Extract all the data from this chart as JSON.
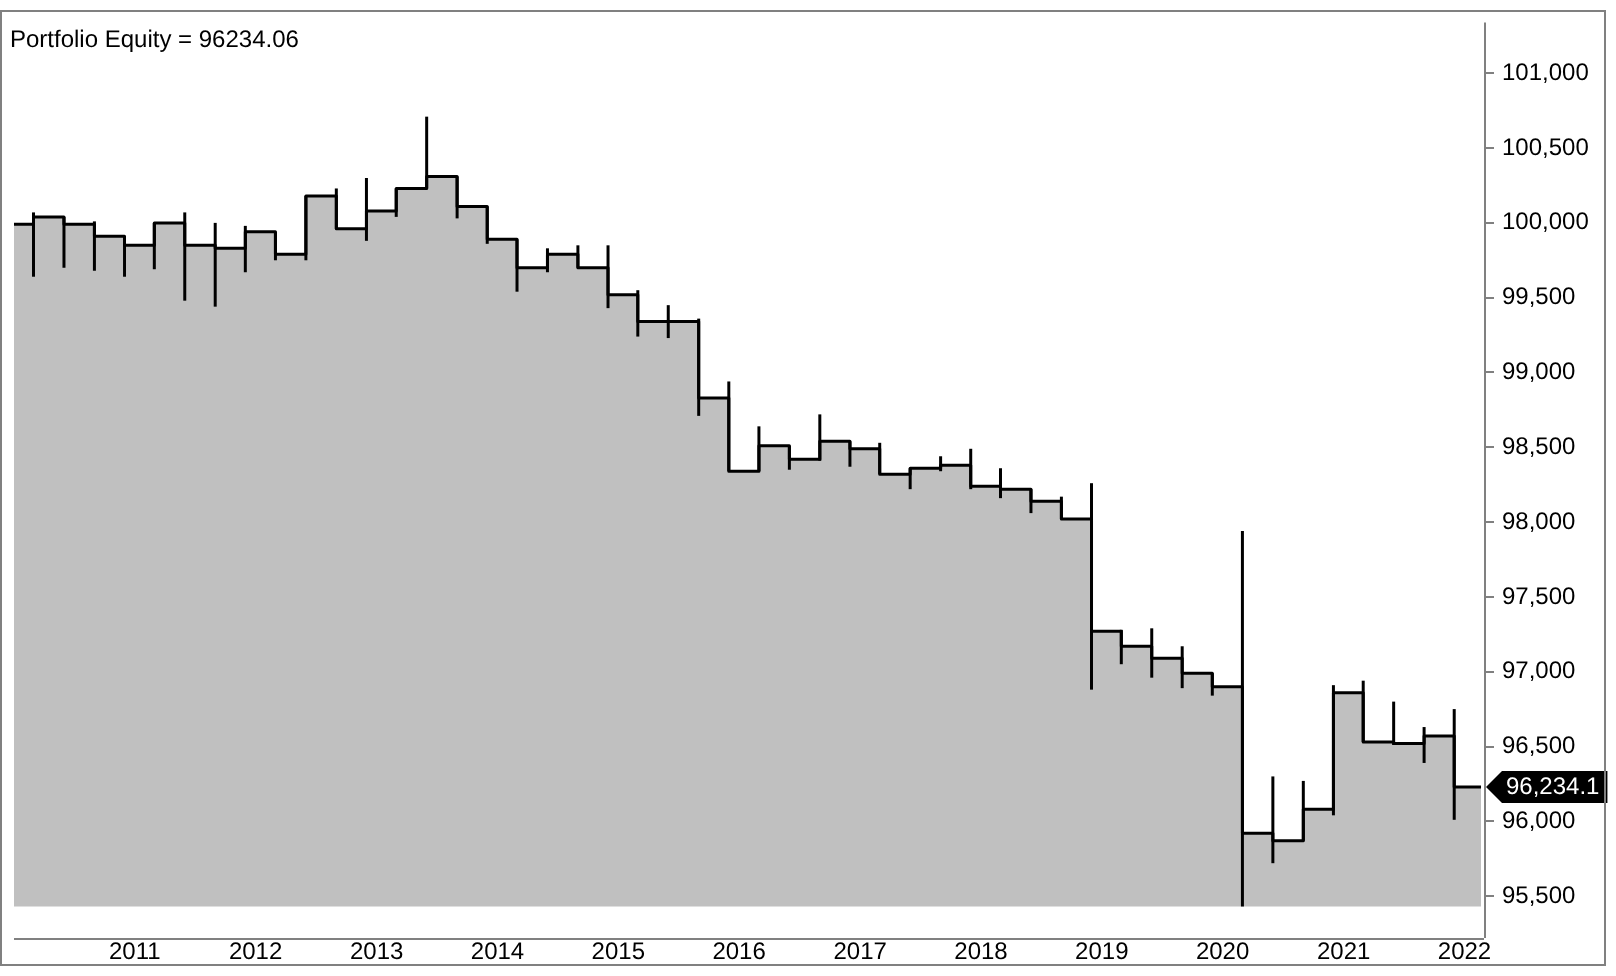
{
  "chart_data": {
    "type": "area",
    "title": "Portfolio Equity = 96234.06",
    "x": [
      "2010-01",
      "2010-03",
      "2010-06",
      "2010-09",
      "2010-12",
      "2011-03",
      "2011-06",
      "2011-09",
      "2011-12",
      "2012-03",
      "2012-06",
      "2012-09",
      "2012-12",
      "2013-03",
      "2013-06",
      "2013-09",
      "2013-12",
      "2014-03",
      "2014-06",
      "2014-09",
      "2014-12",
      "2015-03",
      "2015-06",
      "2015-09",
      "2015-12",
      "2016-03",
      "2016-06",
      "2016-09",
      "2016-12",
      "2017-03",
      "2017-06",
      "2017-09",
      "2017-12",
      "2018-03",
      "2018-06",
      "2018-09",
      "2018-12",
      "2019-03",
      "2019-06",
      "2019-09",
      "2019-12",
      "2020-03",
      "2020-06",
      "2020-09",
      "2020-12",
      "2021-03",
      "2021-06",
      "2021-09",
      "2021-12",
      "2022-02-20"
    ],
    "series": [
      {
        "color": "#c0c0c0",
        "values": [
          99990,
          100040,
          99990,
          99910,
          99850,
          100000,
          99850,
          99830,
          99940,
          99790,
          100180,
          99960,
          100080,
          100230,
          100310,
          100110,
          99890,
          99700,
          99790,
          99700,
          99520,
          99340,
          99340,
          98830,
          98340,
          98510,
          98420,
          98540,
          98490,
          98320,
          98360,
          98380,
          98240,
          98220,
          98140,
          98020,
          97270,
          97170,
          97090,
          96990,
          96900,
          95920,
          95870,
          96080,
          96860,
          96530,
          96520,
          96570,
          96230,
          96230
        ]
      },
      {
        "type": "step",
        "color": "#000000",
        "values": [
          99990,
          100040,
          99990,
          99910,
          99850,
          100000,
          99850,
          99830,
          99940,
          99790,
          100180,
          99960,
          100080,
          100230,
          100310,
          100110,
          99890,
          99700,
          99790,
          99700,
          99520,
          99340,
          99340,
          98830,
          98340,
          98510,
          98420,
          98540,
          98490,
          98320,
          98360,
          98380,
          98240,
          98220,
          98140,
          98020,
          97270,
          97170,
          97090,
          96990,
          96900,
          95920,
          95870,
          96080,
          96860,
          96530,
          96520,
          96570,
          96230,
          96230
        ],
        "errors": [
          null,
          [
            99640,
            100070
          ],
          [
            99700,
            100040
          ],
          [
            99680,
            100010
          ],
          [
            99640,
            99910
          ],
          [
            99690,
            100000
          ],
          [
            99480,
            100070
          ],
          [
            99440,
            100000
          ],
          [
            99670,
            99980
          ],
          [
            99750,
            99940
          ],
          [
            99750,
            100180
          ],
          [
            99960,
            100230
          ],
          [
            99880,
            100300
          ],
          [
            100040,
            100230
          ],
          [
            100230,
            100710
          ],
          [
            100030,
            100310
          ],
          [
            99860,
            100110
          ],
          [
            99540,
            99890
          ],
          [
            99670,
            99830
          ],
          [
            99700,
            99850
          ],
          [
            99430,
            99850
          ],
          [
            99240,
            99550
          ],
          [
            99230,
            99450
          ],
          [
            98710,
            99360
          ],
          [
            98340,
            98940
          ],
          [
            98340,
            98640
          ],
          [
            98350,
            98510
          ],
          [
            98410,
            98720
          ],
          [
            98370,
            98540
          ],
          [
            98320,
            98530
          ],
          [
            98220,
            98360
          ],
          [
            98340,
            98440
          ],
          [
            98220,
            98490
          ],
          [
            98160,
            98360
          ],
          [
            98060,
            98220
          ],
          [
            98020,
            98170
          ],
          [
            96880,
            98260
          ],
          [
            97050,
            97280
          ],
          [
            96960,
            97290
          ],
          [
            96890,
            97170
          ],
          [
            96840,
            96990
          ],
          [
            95430,
            97940
          ],
          [
            95720,
            96300
          ],
          [
            95870,
            96270
          ],
          [
            96040,
            96910
          ],
          [
            96530,
            96940
          ],
          [
            96510,
            96800
          ],
          [
            96390,
            96630
          ],
          [
            96010,
            96750
          ],
          null
        ]
      }
    ],
    "xlim": [
      "2010-01",
      "2022-03"
    ],
    "xticks": [
      "2011",
      "2012",
      "2013",
      "2014",
      "2015",
      "2016",
      "2017",
      "2018",
      "2019",
      "2020",
      "2021",
      "2022"
    ],
    "ylim": [
      95220,
      101340
    ],
    "yticks": [
      {
        "value": 95500,
        "label": "95,500"
      },
      {
        "value": 96000,
        "label": "96,000"
      },
      {
        "value": 96500,
        "label": "96,500"
      },
      {
        "value": 97000,
        "label": "97,000"
      },
      {
        "value": 97500,
        "label": "97,500"
      },
      {
        "value": 98000,
        "label": "98,000"
      },
      {
        "value": 98500,
        "label": "98,500"
      },
      {
        "value": 99000,
        "label": "99,000"
      },
      {
        "value": 99500,
        "label": "99,500"
      },
      {
        "value": 100000,
        "label": "100,000"
      },
      {
        "value": 100500,
        "label": "100,500"
      },
      {
        "value": 101000,
        "label": "101,000"
      }
    ],
    "annotations": [
      {
        "text": "96,234.1",
        "x": "2022-03",
        "y": 96230
      }
    ]
  }
}
